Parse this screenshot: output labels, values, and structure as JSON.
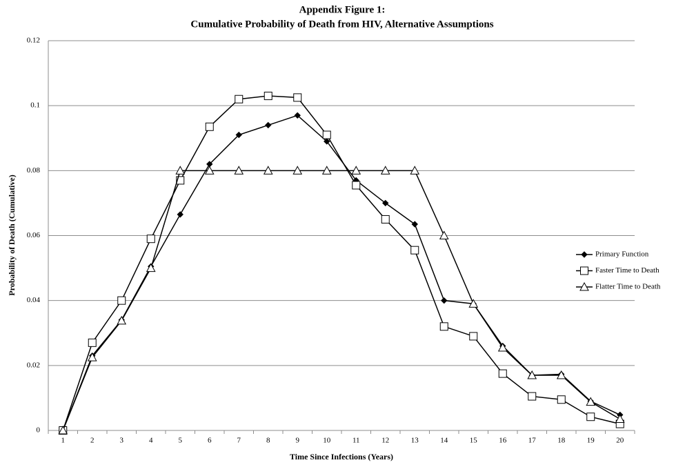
{
  "chart_data": {
    "type": "line",
    "title": "Appendix Figure 1:",
    "subtitle": "Cumulative Probability of Death from HIV, Alternative Assumptions",
    "x_label": "Time Since Infections (Years)",
    "y_label": "Probability of Death (Cumulative)",
    "categories": [
      1,
      2,
      3,
      4,
      5,
      6,
      7,
      8,
      9,
      10,
      11,
      12,
      13,
      14,
      15,
      16,
      17,
      18,
      19,
      20
    ],
    "series": [
      {
        "name": "Primary Function",
        "color": "#000000",
        "marker": "diamond",
        "values": [
          0,
          0.023,
          0.034,
          0.0505,
          0.0665,
          0.082,
          0.091,
          0.094,
          0.097,
          0.089,
          0.077,
          0.07,
          0.0635,
          0.04,
          0.039,
          0.026,
          0.017,
          0.0173,
          0.009,
          0.0048
        ]
      },
      {
        "name": "Faster Time to Death",
        "color": "#000000",
        "marker": "square",
        "values": [
          0,
          0.027,
          0.04,
          0.059,
          0.077,
          0.0935,
          0.102,
          0.103,
          0.1025,
          0.091,
          0.0755,
          0.065,
          0.0555,
          0.032,
          0.029,
          0.0175,
          0.0105,
          0.0095,
          0.0042,
          0.002
        ]
      },
      {
        "name": "Flatter Time to Death",
        "color": "#000000",
        "marker": "triangle",
        "values": [
          0,
          0.0225,
          0.0338,
          0.05,
          0.08,
          0.08,
          0.08,
          0.08,
          0.08,
          0.08,
          0.08,
          0.08,
          0.08,
          0.06,
          0.039,
          0.0255,
          0.017,
          0.017,
          0.0088,
          0.0035
        ]
      }
    ],
    "ylim": [
      0,
      0.12
    ],
    "yticks": [
      0,
      0.02,
      0.04,
      0.06,
      0.08,
      0.1,
      0.12
    ],
    "grid": true,
    "legend": "right"
  }
}
